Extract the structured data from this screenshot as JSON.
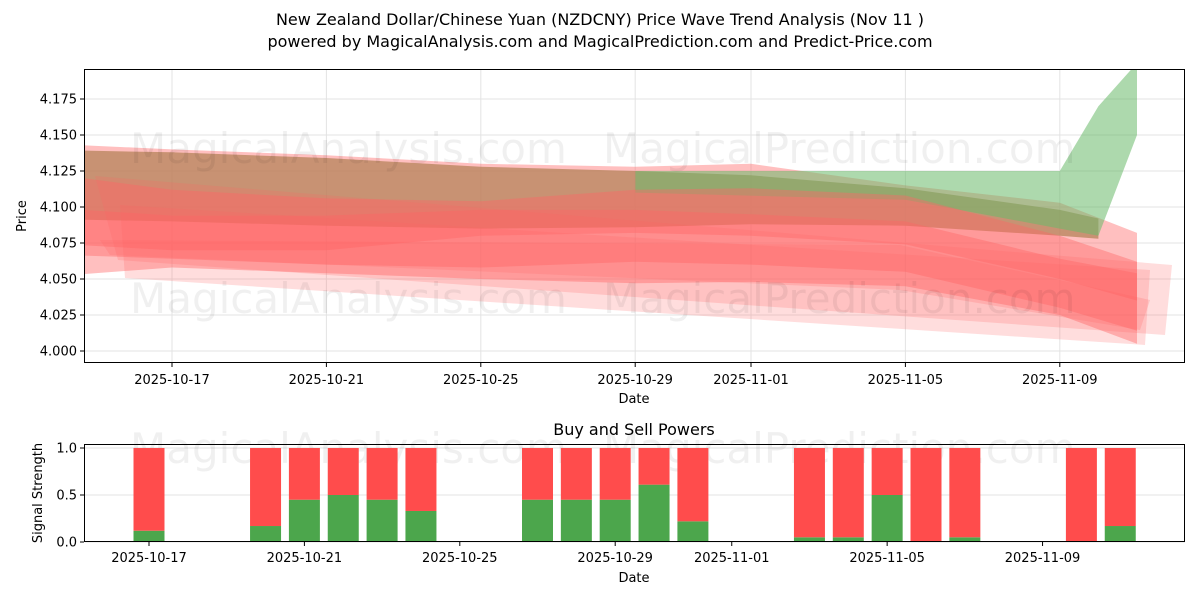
{
  "title": {
    "line1": "New Zealand Dollar/Chinese Yuan (NZDCNY) Price Wave Trend Analysis (Nov 11 )",
    "line2": "powered by MagicalAnalysis.com and MagicalPrediction.com and Predict-Price.com"
  },
  "watermarks": [
    "MagicalAnalysis.com",
    "MagicalPrediction.com"
  ],
  "colors": {
    "sell_red": "#ff4c4c",
    "buy_green": "#4ca64c",
    "band_red": "#ff6666",
    "band_green": "#6ab96a",
    "band_brown": "#b5835a"
  },
  "chart_data": [
    {
      "type": "area",
      "title": "New Zealand Dollar/Chinese Yuan (NZDCNY) Price Wave Trend Analysis (Nov 11 )",
      "xlabel": "Date",
      "ylabel": "Price",
      "ylim": [
        3.992,
        4.196
      ],
      "grid": true,
      "x_ticks": [
        "2025-10-17",
        "2025-10-21",
        "2025-10-25",
        "2025-10-29",
        "2025-11-01",
        "2025-11-05",
        "2025-11-09"
      ],
      "y_ticks": [
        "4.000",
        "4.025",
        "4.050",
        "4.075",
        "4.100",
        "4.125",
        "4.150",
        "4.175"
      ],
      "series": [
        {
          "name": "wave-band-upper-brown",
          "color": "brown",
          "x": [
            "2025-10-15",
            "2025-10-17",
            "2025-10-21",
            "2025-10-25",
            "2025-10-29",
            "2025-11-01",
            "2025-11-05",
            "2025-11-09",
            "2025-11-10"
          ],
          "upper": [
            4.14,
            4.138,
            4.134,
            4.128,
            4.125,
            4.122,
            4.113,
            4.098,
            4.092
          ],
          "lower": [
            4.092,
            4.09,
            4.087,
            4.085,
            4.086,
            4.088,
            4.087,
            4.08,
            4.078
          ]
        },
        {
          "name": "wave-band-green-forecast",
          "color": "green",
          "x": [
            "2025-10-31",
            "2025-11-05",
            "2025-11-09",
            "2025-11-10",
            "2025-11-11"
          ],
          "upper": [
            4.125,
            4.125,
            4.125,
            4.17,
            4.2
          ],
          "lower": [
            4.11,
            4.105,
            4.085,
            4.08,
            4.15
          ]
        },
        {
          "name": "wave-band-red-1",
          "color": "red",
          "x": [
            "2025-10-15",
            "2025-10-17",
            "2025-10-21",
            "2025-10-25",
            "2025-10-29",
            "2025-11-01",
            "2025-11-05",
            "2025-11-09",
            "2025-11-11"
          ],
          "upper": [
            4.126,
            4.112,
            4.106,
            4.104,
            4.112,
            4.113,
            4.108,
            4.08,
            4.062
          ],
          "lower": [
            4.076,
            4.07,
            4.07,
            4.08,
            4.082,
            4.08,
            4.074,
            4.05,
            4.035
          ]
        },
        {
          "name": "wave-band-red-2",
          "color": "red",
          "x": [
            "2025-10-15",
            "2025-10-17",
            "2025-10-21",
            "2025-10-25",
            "2025-10-29",
            "2025-11-01",
            "2025-11-05",
            "2025-11-09",
            "2025-11-11"
          ],
          "upper": [
            4.101,
            4.094,
            4.094,
            4.098,
            4.098,
            4.095,
            4.09,
            4.064,
            4.054
          ],
          "lower": [
            4.068,
            4.064,
            4.06,
            4.058,
            4.062,
            4.06,
            4.055,
            4.03,
            4.014
          ]
        },
        {
          "name": "wave-band-red-light",
          "color": "red",
          "x": [
            "2025-10-15",
            "2025-10-17",
            "2025-10-21",
            "2025-10-25",
            "2025-10-29",
            "2025-11-01",
            "2025-11-05",
            "2025-11-09",
            "2025-11-11"
          ],
          "upper": [
            4.145,
            4.14,
            4.136,
            4.13,
            4.128,
            4.13,
            4.115,
            4.103,
            4.082
          ],
          "lower": [
            4.05,
            4.058,
            4.054,
            4.05,
            4.047,
            4.048,
            4.045,
            4.025,
            4.005
          ]
        }
      ]
    },
    {
      "type": "bar",
      "title": "Buy and Sell Powers",
      "xlabel": "Date",
      "ylabel": "Signal Strength",
      "ylim": [
        0,
        1.05
      ],
      "grid": true,
      "x_ticks": [
        "2025-10-17",
        "2025-10-21",
        "2025-10-25",
        "2025-10-29",
        "2025-11-01",
        "2025-11-05",
        "2025-11-09"
      ],
      "y_ticks": [
        "0.0",
        "0.5",
        "1.0"
      ],
      "categories": [
        "2025-10-17",
        "2025-10-20",
        "2025-10-21",
        "2025-10-22",
        "2025-10-23",
        "2025-10-24",
        "2025-10-27",
        "2025-10-28",
        "2025-10-29",
        "2025-10-30",
        "2025-10-31",
        "2025-11-03",
        "2025-11-04",
        "2025-11-05",
        "2025-11-06",
        "2025-11-07",
        "2025-11-10",
        "2025-11-11"
      ],
      "series": [
        {
          "name": "Buy",
          "color": "green",
          "values": [
            0.12,
            0.17,
            0.45,
            0.5,
            0.45,
            0.33,
            0.45,
            0.45,
            0.45,
            0.61,
            0.22,
            0.05,
            0.05,
            0.5,
            0.0,
            0.05,
            0.0,
            0.17
          ]
        },
        {
          "name": "Sell",
          "color": "red",
          "values": [
            0.88,
            0.83,
            0.55,
            0.5,
            0.55,
            0.67,
            0.55,
            0.55,
            0.55,
            0.39,
            0.78,
            0.95,
            0.95,
            0.5,
            1.0,
            0.95,
            1.0,
            0.83
          ]
        }
      ]
    }
  ]
}
